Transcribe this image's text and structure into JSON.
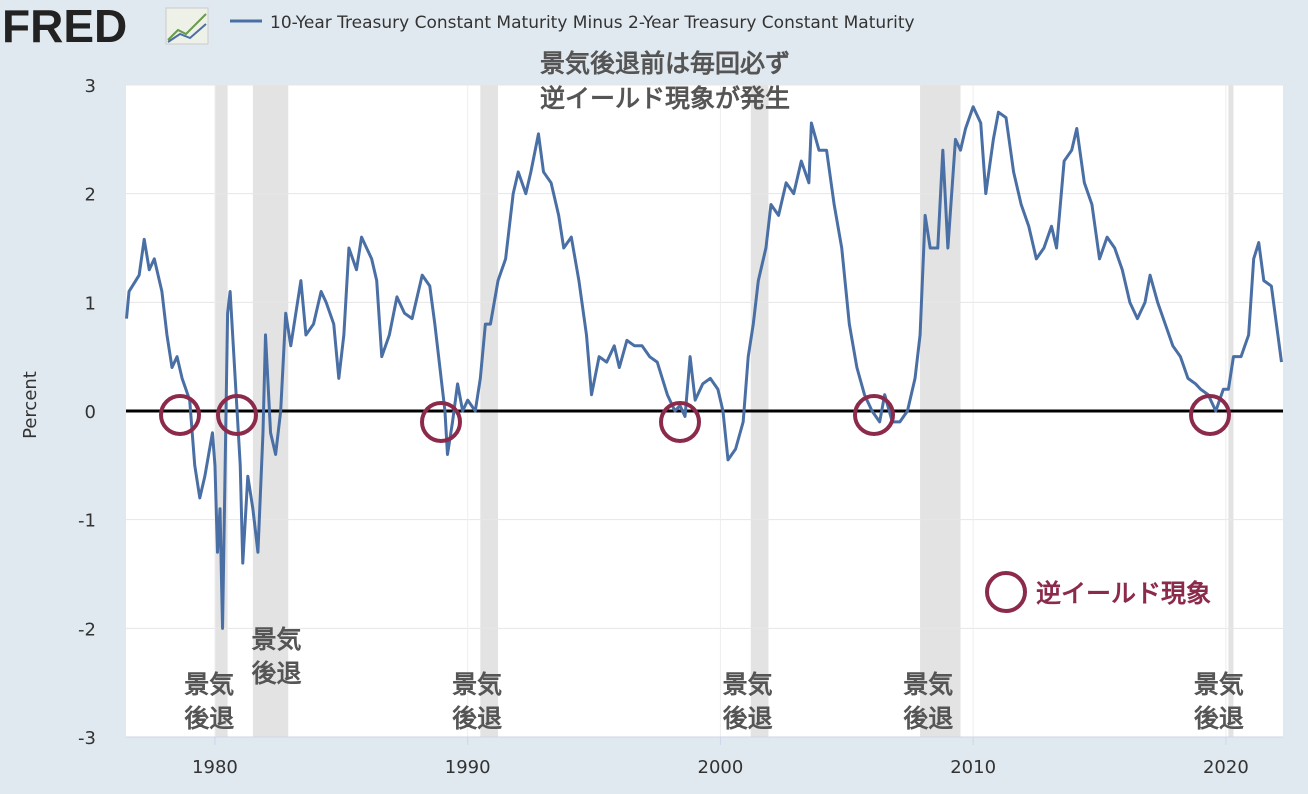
{
  "logo": "FRED",
  "chart_data": {
    "type": "line",
    "legend_title": "10-Year Treasury Constant Maturity Minus 2-Year Treasury Constant Maturity",
    "ylabel": "Percent",
    "note": [
      "景気後退前は毎回必ず",
      "逆イールド現象が発生"
    ],
    "legend_marker_label": "逆イールド現象",
    "recession_labels": [
      [
        "景気",
        "後退"
      ],
      [
        "景気",
        "後退"
      ],
      [
        "景気",
        "後退"
      ],
      [
        "景気",
        "後退"
      ],
      [
        "景気",
        "後退"
      ],
      [
        "景気",
        "後退"
      ]
    ],
    "recessions": [
      [
        1980.0,
        1980.5
      ],
      [
        1981.5,
        1982.9
      ],
      [
        1990.5,
        1991.2
      ],
      [
        2001.2,
        2001.9
      ],
      [
        2007.9,
        2009.5
      ],
      [
        2020.1,
        2020.3
      ]
    ],
    "xlim": [
      1976.48,
      2022.26
    ],
    "ylim": [
      -3,
      3
    ],
    "xticks": [
      1980,
      1990,
      2000,
      2010,
      2020
    ],
    "yticks": [
      -3,
      -2,
      -1,
      0,
      1,
      2,
      3
    ],
    "grid": true,
    "series": [
      {
        "name": "10-Year Treasury Constant Maturity Minus 2-Year Treasury Constant Maturity",
        "color": "#4a6fa5",
        "x": [
          1976.5,
          1976.6,
          1977.0,
          1977.2,
          1977.4,
          1977.6,
          1977.9,
          1978.1,
          1978.3,
          1978.5,
          1978.7,
          1979.0,
          1979.2,
          1979.4,
          1979.6,
          1979.9,
          1980.0,
          1980.1,
          1980.2,
          1980.3,
          1980.5,
          1980.6,
          1980.8,
          1981.0,
          1981.1,
          1981.3,
          1981.5,
          1981.7,
          1981.9,
          1982.0,
          1982.2,
          1982.4,
          1982.6,
          1982.8,
          1983.0,
          1983.2,
          1983.4,
          1983.6,
          1983.9,
          1984.2,
          1984.4,
          1984.7,
          1984.9,
          1985.1,
          1985.3,
          1985.6,
          1985.8,
          1986.2,
          1986.4,
          1986.6,
          1986.9,
          1987.2,
          1987.5,
          1987.8,
          1988.0,
          1988.2,
          1988.5,
          1988.7,
          1988.9,
          1989.1,
          1989.2,
          1989.4,
          1989.6,
          1989.8,
          1990.0,
          1990.3,
          1990.5,
          1990.7,
          1990.9,
          1991.2,
          1991.5,
          1991.8,
          1992.0,
          1992.3,
          1992.5,
          1992.8,
          1993.0,
          1993.3,
          1993.6,
          1993.8,
          1994.1,
          1994.4,
          1994.7,
          1994.9,
          1995.2,
          1995.5,
          1995.8,
          1996.0,
          1996.3,
          1996.6,
          1996.9,
          1997.2,
          1997.5,
          1997.7,
          1997.9,
          1998.2,
          1998.4,
          1998.6,
          1998.8,
          1999.0,
          1999.3,
          1999.6,
          1999.9,
          2000.1,
          2000.3,
          2000.6,
          2000.9,
          2001.1,
          2001.3,
          2001.5,
          2001.8,
          2002.0,
          2002.3,
          2002.6,
          2002.9,
          2003.2,
          2003.5,
          2003.6,
          2003.9,
          2004.2,
          2004.5,
          2004.8,
          2005.1,
          2005.4,
          2005.7,
          2006.0,
          2006.3,
          2006.5,
          2006.8,
          2007.1,
          2007.4,
          2007.7,
          2007.9,
          2008.1,
          2008.3,
          2008.6,
          2008.8,
          2009.0,
          2009.3,
          2009.5,
          2009.7,
          2010.0,
          2010.3,
          2010.5,
          2010.8,
          2011.0,
          2011.3,
          2011.6,
          2011.9,
          2012.2,
          2012.5,
          2012.8,
          2013.1,
          2013.3,
          2013.6,
          2013.9,
          2014.1,
          2014.4,
          2014.7,
          2015.0,
          2015.3,
          2015.6,
          2015.9,
          2016.2,
          2016.5,
          2016.8,
          2017.0,
          2017.3,
          2017.6,
          2017.9,
          2018.2,
          2018.5,
          2018.8,
          2019.0,
          2019.3,
          2019.6,
          2019.9,
          2020.1,
          2020.3,
          2020.6,
          2020.9,
          2021.1,
          2021.3,
          2021.5,
          2021.8,
          2022.0,
          2022.2
        ],
        "values": [
          0.85,
          1.1,
          1.25,
          1.58,
          1.3,
          1.4,
          1.1,
          0.7,
          0.4,
          0.5,
          0.3,
          0.1,
          -0.5,
          -0.8,
          -0.6,
          -0.2,
          -0.5,
          -1.3,
          -0.9,
          -2.0,
          0.9,
          1.1,
          0.3,
          -0.5,
          -1.4,
          -0.6,
          -0.9,
          -1.3,
          -0.2,
          0.7,
          -0.2,
          -0.4,
          0.0,
          0.9,
          0.6,
          0.9,
          1.2,
          0.7,
          0.8,
          1.1,
          1.0,
          0.8,
          0.3,
          0.7,
          1.5,
          1.3,
          1.6,
          1.4,
          1.2,
          0.5,
          0.7,
          1.05,
          0.9,
          0.85,
          1.05,
          1.25,
          1.15,
          0.8,
          0.4,
          0.0,
          -0.4,
          -0.1,
          0.25,
          0.0,
          0.1,
          0.0,
          0.3,
          0.8,
          0.8,
          1.2,
          1.4,
          2.0,
          2.2,
          2.0,
          2.2,
          2.55,
          2.2,
          2.1,
          1.8,
          1.5,
          1.6,
          1.2,
          0.7,
          0.15,
          0.5,
          0.45,
          0.6,
          0.4,
          0.65,
          0.6,
          0.6,
          0.5,
          0.45,
          0.3,
          0.15,
          0.0,
          0.05,
          -0.05,
          0.5,
          0.1,
          0.25,
          0.3,
          0.2,
          0.0,
          -0.45,
          -0.35,
          -0.1,
          0.5,
          0.8,
          1.2,
          1.5,
          1.9,
          1.8,
          2.1,
          2.0,
          2.3,
          2.1,
          2.65,
          2.4,
          2.4,
          1.9,
          1.5,
          0.8,
          0.4,
          0.15,
          0.0,
          -0.1,
          0.15,
          -0.1,
          -0.1,
          0.0,
          0.3,
          0.7,
          1.8,
          1.5,
          1.5,
          2.4,
          1.5,
          2.5,
          2.4,
          2.6,
          2.8,
          2.65,
          2.0,
          2.5,
          2.75,
          2.7,
          2.2,
          1.9,
          1.7,
          1.4,
          1.5,
          1.7,
          1.5,
          2.3,
          2.4,
          2.6,
          2.1,
          1.9,
          1.4,
          1.6,
          1.5,
          1.3,
          1.0,
          0.85,
          1.0,
          1.25,
          1.0,
          0.8,
          0.6,
          0.5,
          0.3,
          0.25,
          0.2,
          0.15,
          0.0,
          0.2,
          0.2,
          0.5,
          0.5,
          0.7,
          1.4,
          1.55,
          1.2,
          1.15,
          0.8,
          0.45
        ]
      }
    ]
  }
}
